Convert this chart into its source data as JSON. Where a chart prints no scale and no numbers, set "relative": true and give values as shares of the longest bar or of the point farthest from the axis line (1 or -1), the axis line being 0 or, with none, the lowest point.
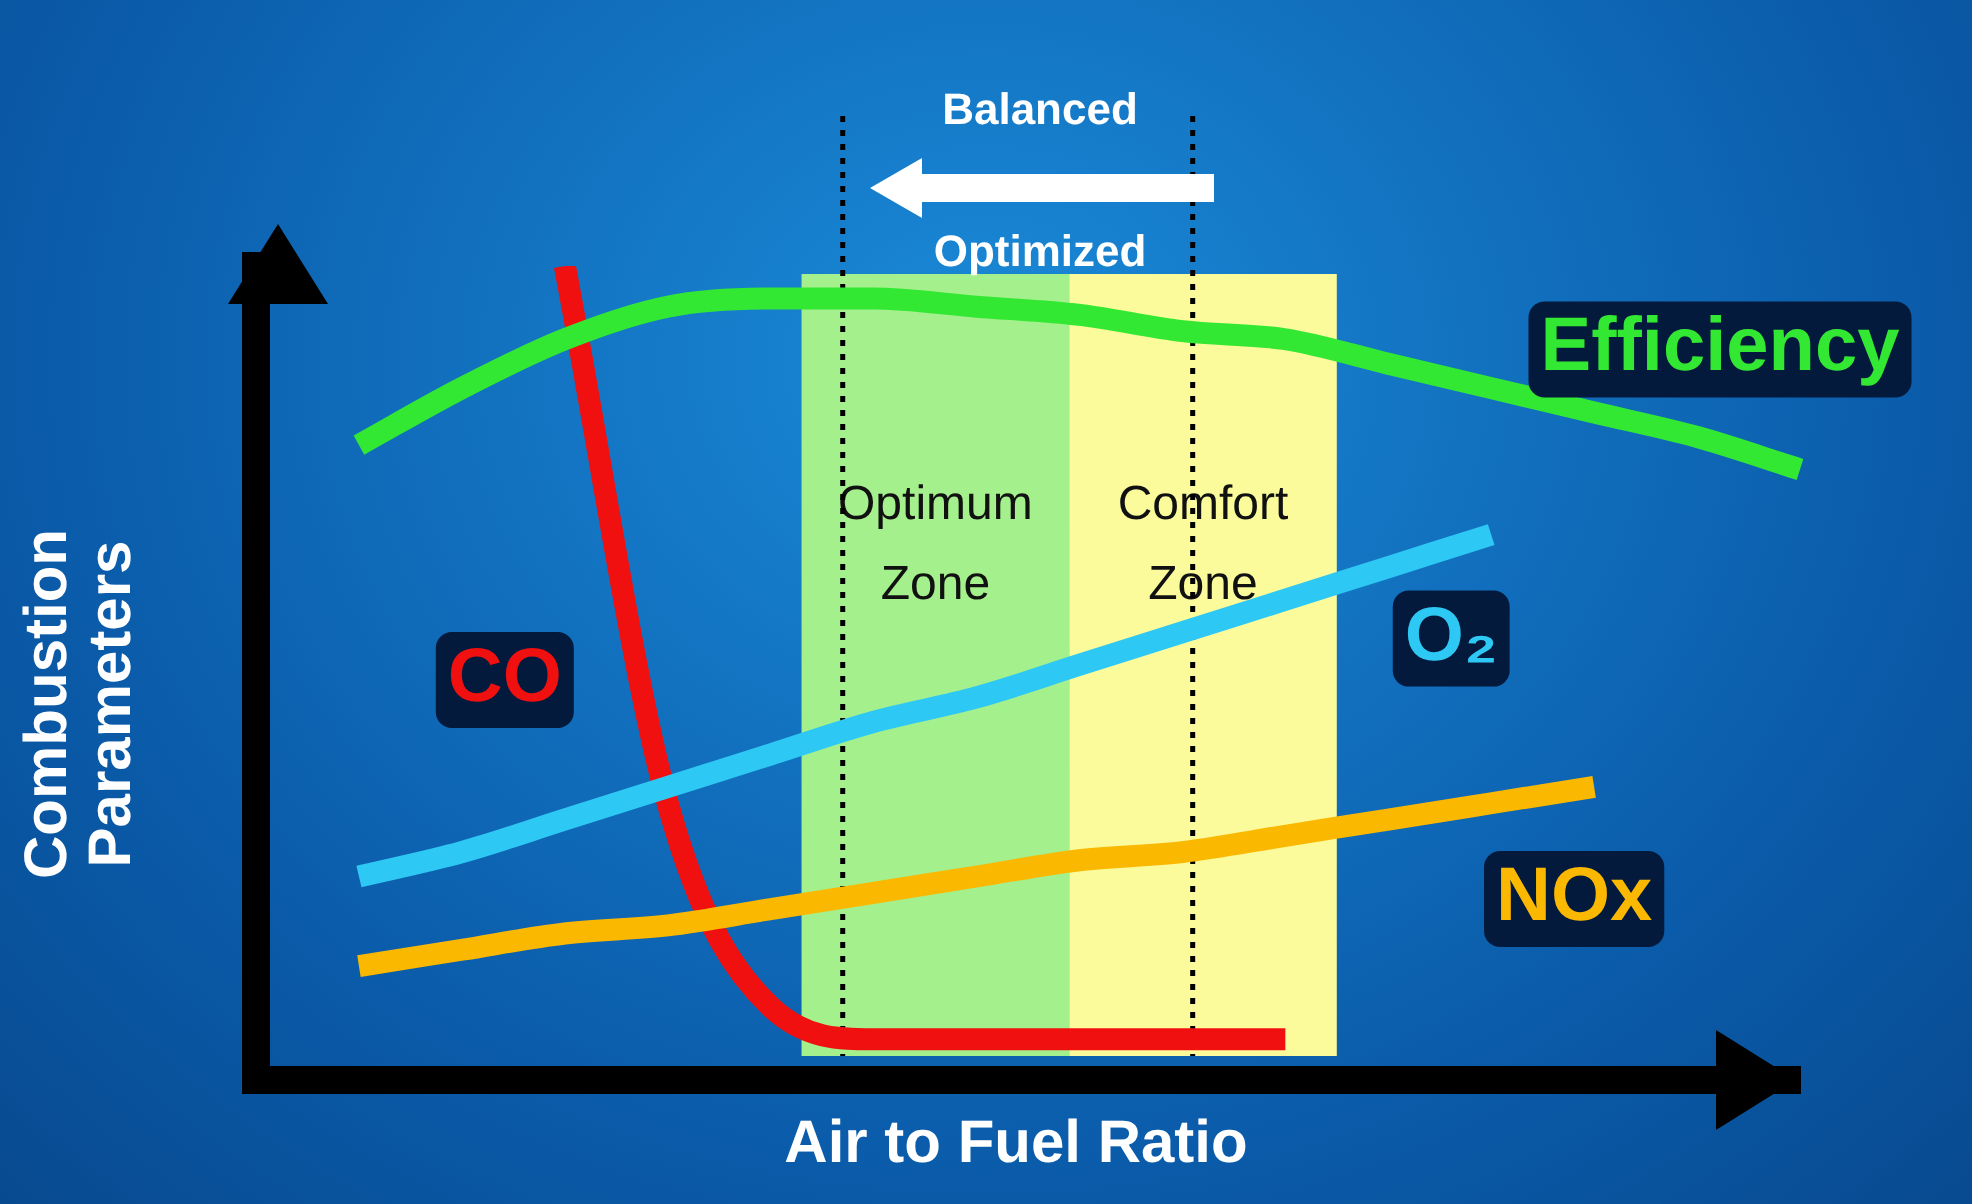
{
  "chart_data": {
    "type": "line",
    "relative": true,
    "xlabel": "Air to Fuel Ratio",
    "ylabel": "Combustion Parameters",
    "categories": [
      null,
      null,
      null,
      null,
      null,
      null,
      null,
      null,
      null,
      null,
      null,
      null,
      null,
      null,
      null,
      null
    ],
    "series": [
      {
        "name": "Efficiency",
        "color": "#33e833",
        "values": [
          null,
          0.78,
          0.85,
          0.91,
          0.95,
          0.96,
          0.96,
          0.95,
          0.94,
          0.92,
          0.91,
          0.88,
          0.85,
          0.82,
          0.79,
          0.75
        ]
      },
      {
        "name": "O₂",
        "color": "#2ec8f5",
        "values": [
          null,
          0.25,
          0.28,
          0.32,
          0.36,
          0.4,
          0.44,
          0.47,
          0.51,
          0.55,
          0.59,
          0.63,
          0.67,
          null,
          null,
          null
        ]
      },
      {
        "name": "NOx",
        "color": "#fbb800",
        "values": [
          null,
          0.14,
          0.16,
          0.18,
          0.19,
          0.21,
          0.23,
          0.25,
          0.27,
          0.28,
          0.3,
          0.32,
          0.34,
          0.36,
          null,
          null
        ]
      },
      {
        "name": "CO",
        "color": "#f01010",
        "values": [
          null,
          null,
          null,
          1,
          0.34,
          0.09,
          0.05,
          0.05,
          0.05,
          0.05,
          0.05,
          null,
          null,
          null,
          null,
          null
        ]
      }
    ],
    "annotations": [
      "Balanced",
      "Optimized",
      "Optimum Zone",
      "Comfort Zone"
    ],
    "grid": false,
    "legend": false,
    "marker": "none",
    "line_style": "solid"
  }
}
